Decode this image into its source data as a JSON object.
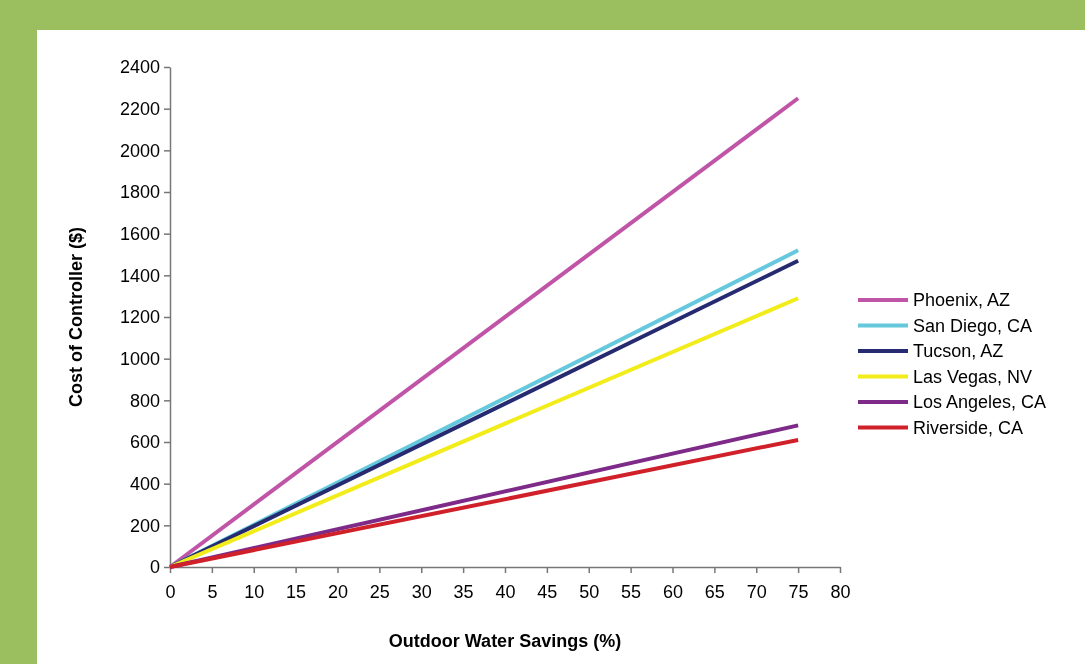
{
  "chart_data": {
    "type": "line",
    "xlabel": "Outdoor Water Savings (%)",
    "ylabel": "Cost of Controller ($)",
    "xlim": [
      0,
      80
    ],
    "xticks": [
      0,
      5,
      10,
      15,
      20,
      25,
      30,
      35,
      40,
      45,
      50,
      55,
      60,
      65,
      70,
      75,
      80
    ],
    "ylim": [
      0,
      2400
    ],
    "yticks": [
      0,
      200,
      400,
      600,
      800,
      1000,
      1200,
      1400,
      1600,
      1800,
      2000,
      2200,
      2400
    ],
    "x": [
      0,
      75
    ],
    "grid": false,
    "legend": "right",
    "marker": "none",
    "line_style": "solid",
    "series": [
      {
        "name": "Phoenix, AZ",
        "color": "#c055a8",
        "values": [
          0,
          2250
        ]
      },
      {
        "name": "San Diego, CA",
        "color": "#66c8dc",
        "values": [
          0,
          1520
        ]
      },
      {
        "name": "Tucson, AZ",
        "color": "#262a70",
        "values": [
          0,
          1470
        ]
      },
      {
        "name": "Las Vegas, NV",
        "color": "#f2ec1a",
        "values": [
          0,
          1290
        ]
      },
      {
        "name": "Los Angeles, CA",
        "color": "#7d2a88",
        "values": [
          0,
          680
        ]
      },
      {
        "name": "Riverside, CA",
        "color": "#d0202a",
        "values": [
          0,
          610
        ]
      }
    ]
  }
}
